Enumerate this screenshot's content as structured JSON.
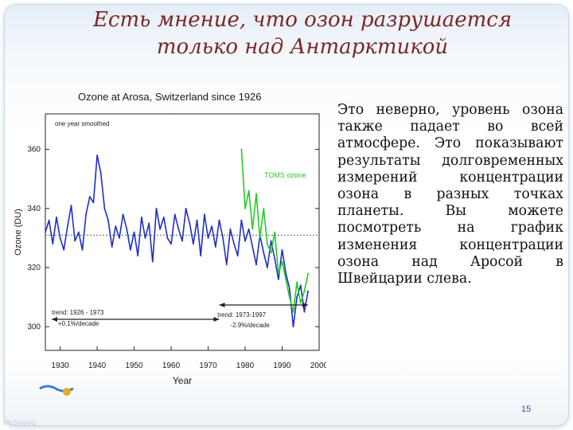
{
  "slide": {
    "title_line1": "Есть мнение, что озон разрушается",
    "title_line2": "только над Антарктикой",
    "body_text": "Это неверно, уровень озона также падает во всей атмосфере. Это показывают результаты долговременных измерений концентрации озона в разных точках планеты. Вы можете посмотреть на график изменения концентрации озона над Аросой в Швейцарии слева.",
    "page_number": "15",
    "watermark": "MyShared",
    "colors": {
      "title": "#7a2727",
      "series_blue": "#1f2ec8",
      "series_green": "#22cc22",
      "page_number": "#2a5aa0"
    }
  },
  "chart_data": {
    "type": "line",
    "title": "Ozone at Arosa, Switzerland since 1926",
    "xlabel": "Year",
    "ylabel": "Ozone (DU)",
    "xlim": [
      1926,
      2000
    ],
    "ylim": [
      292,
      372
    ],
    "xticks": [
      1930,
      1940,
      1950,
      1960,
      1970,
      1980,
      1990,
      2000
    ],
    "yticks": [
      300,
      320,
      340,
      360
    ],
    "grid": false,
    "reference_line_y": 331,
    "annotations": {
      "smoothing_note": "one year smoothed",
      "toms_label": "TOMS ozone",
      "trend1_line1": "trend: 1926 - 1973",
      "trend1_line2": "+0.1%/decade",
      "trend2_line1": "trend: 1973-1997",
      "trend2_line2": "-2.9%/decade"
    },
    "series": [
      {
        "name": "Arosa",
        "color": "#1f2ec8",
        "x": [
          1926,
          1927,
          1928,
          1929,
          1930,
          1931,
          1932,
          1933,
          1934,
          1935,
          1936,
          1937,
          1938,
          1939,
          1940,
          1941,
          1942,
          1943,
          1944,
          1945,
          1946,
          1947,
          1948,
          1949,
          1950,
          1951,
          1952,
          1953,
          1954,
          1955,
          1956,
          1957,
          1958,
          1959,
          1960,
          1961,
          1962,
          1963,
          1964,
          1965,
          1966,
          1967,
          1968,
          1969,
          1970,
          1971,
          1972,
          1973,
          1974,
          1975,
          1976,
          1977,
          1978,
          1979,
          1980,
          1981,
          1982,
          1983,
          1984,
          1985,
          1986,
          1987,
          1988,
          1989,
          1990,
          1991,
          1992,
          1993,
          1994,
          1995,
          1996,
          1997
        ],
        "values": [
          332,
          336,
          328,
          337,
          330,
          326,
          334,
          341,
          329,
          332,
          326,
          338,
          344,
          342,
          358,
          352,
          340,
          336,
          327,
          334,
          330,
          338,
          333,
          326,
          332,
          324,
          337,
          330,
          335,
          322,
          340,
          333,
          337,
          330,
          328,
          338,
          333,
          329,
          340,
          335,
          328,
          336,
          324,
          338,
          330,
          334,
          327,
          336,
          330,
          321,
          333,
          328,
          324,
          336,
          329,
          333,
          327,
          321,
          331,
          325,
          320,
          329,
          323,
          316,
          326,
          318,
          313,
          300,
          310,
          314,
          305,
          312
        ]
      },
      {
        "name": "TOMS ozone",
        "color": "#22cc22",
        "x": [
          1979,
          1980,
          1981,
          1982,
          1983,
          1984,
          1985,
          1986,
          1987,
          1988,
          1989,
          1990,
          1991,
          1992,
          1993,
          1994,
          1995,
          1996,
          1997
        ],
        "values": [
          360,
          340,
          346,
          333,
          345,
          330,
          340,
          328,
          325,
          332,
          318,
          322,
          316,
          310,
          305,
          315,
          308,
          312,
          318
        ]
      }
    ]
  }
}
